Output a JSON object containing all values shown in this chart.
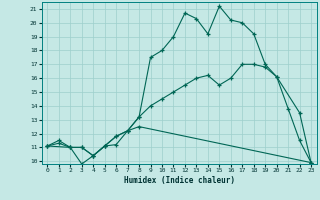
{
  "title": "",
  "xlabel": "Humidex (Indice chaleur)",
  "bg_color": "#c5e8e5",
  "grid_color": "#9ecfcc",
  "line_color": "#006655",
  "xlim": [
    -0.5,
    23.5
  ],
  "ylim": [
    9.8,
    21.5
  ],
  "xticks": [
    0,
    1,
    2,
    3,
    4,
    5,
    6,
    7,
    8,
    9,
    10,
    11,
    12,
    13,
    14,
    15,
    16,
    17,
    18,
    19,
    20,
    21,
    22,
    23
  ],
  "yticks": [
    10,
    11,
    12,
    13,
    14,
    15,
    16,
    17,
    18,
    19,
    20,
    21
  ],
  "line1_x": [
    0,
    1,
    2,
    3,
    4,
    5,
    6,
    7,
    8,
    9,
    10,
    11,
    12,
    13,
    14,
    15,
    16,
    17,
    18,
    19,
    20,
    21,
    22,
    23
  ],
  "line1_y": [
    11.1,
    11.5,
    11.0,
    9.8,
    10.4,
    11.1,
    11.2,
    12.2,
    13.2,
    17.5,
    18.0,
    19.0,
    20.7,
    20.3,
    19.2,
    21.2,
    20.2,
    20.0,
    19.2,
    17.0,
    16.1,
    13.8,
    11.5,
    9.9
  ],
  "line2_x": [
    0,
    1,
    2,
    3,
    4,
    5,
    6,
    7,
    8,
    9,
    10,
    11,
    12,
    13,
    14,
    15,
    16,
    17,
    18,
    19,
    20,
    22,
    23
  ],
  "line2_y": [
    11.1,
    11.3,
    11.0,
    11.0,
    10.4,
    11.1,
    11.8,
    12.2,
    13.2,
    14.0,
    14.5,
    15.0,
    15.5,
    16.0,
    16.2,
    15.5,
    16.0,
    17.0,
    17.0,
    16.8,
    16.1,
    13.5,
    9.9
  ],
  "line3_x": [
    0,
    2,
    3,
    4,
    5,
    6,
    7,
    8,
    23
  ],
  "line3_y": [
    11.1,
    11.0,
    11.0,
    10.4,
    11.1,
    11.8,
    12.2,
    12.5,
    9.9
  ]
}
